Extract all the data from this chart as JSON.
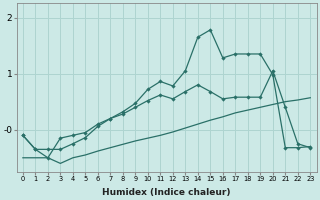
{
  "xlabel": "Humidex (Indice chaleur)",
  "bg_color": "#cce9e6",
  "grid_color": "#aed4d0",
  "line_color": "#2a7068",
  "xlim": [
    -0.5,
    23.5
  ],
  "ylim": [
    -0.75,
    2.25
  ],
  "ytick_positions": [
    0.0,
    1.0,
    2.0
  ],
  "ytick_labels": [
    "-0",
    "1",
    "2"
  ],
  "xticks": [
    0,
    1,
    2,
    3,
    4,
    5,
    6,
    7,
    8,
    9,
    10,
    11,
    12,
    13,
    14,
    15,
    16,
    17,
    18,
    19,
    20,
    21,
    22,
    23
  ],
  "series1_x": [
    0,
    1,
    2,
    3,
    4,
    5,
    6,
    7,
    8,
    9,
    10,
    11,
    12,
    13,
    14,
    15,
    16,
    17,
    18,
    19,
    20,
    21,
    22,
    23
  ],
  "series1_y": [
    -0.1,
    -0.35,
    -0.5,
    -0.15,
    -0.1,
    -0.05,
    0.1,
    0.2,
    0.28,
    0.4,
    0.52,
    0.62,
    0.55,
    0.68,
    0.8,
    0.68,
    0.55,
    0.58,
    0.58,
    0.58,
    1.05,
    0.4,
    -0.25,
    -0.32
  ],
  "series2_x": [
    0,
    1,
    2,
    3,
    4,
    5,
    6,
    7,
    8,
    9,
    10,
    11,
    12,
    13,
    14,
    15,
    16,
    17,
    18,
    19,
    20,
    21,
    22,
    23
  ],
  "series2_y": [
    -0.1,
    -0.35,
    -0.35,
    -0.35,
    -0.25,
    -0.14,
    0.06,
    0.2,
    0.32,
    0.47,
    0.72,
    0.86,
    0.78,
    1.05,
    1.65,
    1.78,
    1.28,
    1.35,
    1.35,
    1.35,
    0.98,
    -0.32,
    -0.32,
    -0.3
  ],
  "series3_x": [
    0,
    1,
    2,
    3,
    4,
    5,
    6,
    7,
    8,
    9,
    10,
    11,
    12,
    13,
    14,
    15,
    16,
    17,
    18,
    19,
    20,
    21,
    22,
    23
  ],
  "series3_y": [
    -0.5,
    -0.5,
    -0.5,
    -0.6,
    -0.5,
    -0.45,
    -0.38,
    -0.32,
    -0.26,
    -0.2,
    -0.15,
    -0.1,
    -0.04,
    0.03,
    0.1,
    0.17,
    0.23,
    0.3,
    0.35,
    0.4,
    0.45,
    0.5,
    0.53,
    0.57
  ]
}
